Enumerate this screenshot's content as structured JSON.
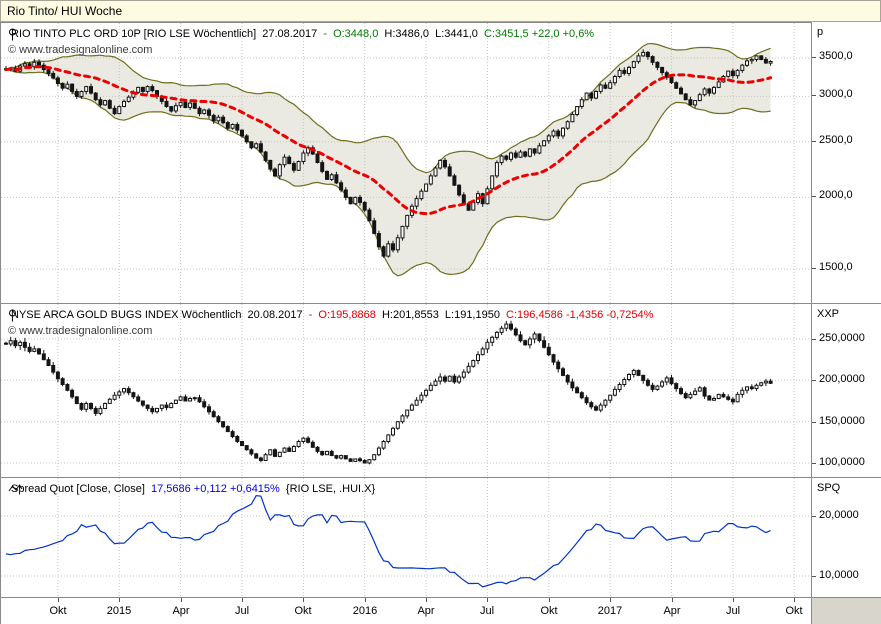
{
  "window": {
    "title": "Rio Tinto/ HUI Woche"
  },
  "panel_rio": {
    "instrument": "RIO TINTO PLC ORD 10P [RIO LSE  Wöchentlich]",
    "date": "27.08.2017",
    "dash": "-",
    "o": "O:3448,0",
    "h": "H:3486,0",
    "l": "L:3441,0",
    "c": "C:3451,5 +22,0 +0,6%",
    "copyright": "© www.tradesignalonline.com",
    "unit": "p",
    "y_labels": [
      "3500,0",
      "3000,0",
      "2500,0",
      "2000,0",
      "1500,0"
    ]
  },
  "panel_hui": {
    "instrument": "NYSE ARCA GOLD BUGS INDEX Wöchentlich",
    "date": "20.08.2017",
    "dash": "-",
    "o": "O:195,8868",
    "h": "H:201,8553",
    "l": "L:191,1950",
    "c": "C:196,4586 -1,4356 -0,7254%",
    "copyright": "© www.tradesignalonline.com",
    "unit": "XXP",
    "y_labels": [
      "250,0000",
      "200,0000",
      "150,0000",
      "100,0000"
    ]
  },
  "panel_spread": {
    "title": "Spread Quot [Close, Close]",
    "value": "17,5686 +0,112 +0,6415%",
    "formula": "{RIO LSE, .HUI.X}",
    "unit": "SPQ",
    "y_labels": [
      "20,0000",
      "10,0000"
    ]
  },
  "xaxis": {
    "labels": [
      "Okt",
      "2015",
      "Apr",
      "Jul",
      "Okt",
      "2016",
      "Apr",
      "Jul",
      "Okt",
      "2017",
      "Apr",
      "Jul",
      "Okt"
    ]
  },
  "colors": {
    "candle": "#151515",
    "ma_dashed": "#ee0000",
    "band_line": "#6e6e1e",
    "band_fill": "rgba(195,195,175,0.35)",
    "spread_line": "#0033cc",
    "gain_text": "#007a00",
    "loss_text": "#e00000",
    "value_text": "#0000d8",
    "titlebar_bg": "#fdfbe1"
  },
  "chart_data": [
    {
      "type": "candlestick",
      "name": "RIO TINTO PLC ORD 10P [RIO LSE] weekly",
      "scale": "log",
      "ylim": [
        1450,
        3700
      ],
      "y_ticks": [
        3500,
        3000,
        2500,
        2000,
        1500
      ],
      "overlays": [
        "bollinger-envelope-olive-grey-fill",
        "red-dashed-moving-average"
      ],
      "last_bar": {
        "open": 3448.0,
        "high": 3486.0,
        "low": 3441.0,
        "close": 3451.5,
        "change": 22.0,
        "change_pct": 0.6
      },
      "closes": [
        3340,
        3360,
        3320,
        3390,
        3420,
        3380,
        3440,
        3400,
        3340,
        3290,
        3230,
        3160,
        3100,
        3150,
        3060,
        3000,
        3060,
        3120,
        3040,
        2960,
        2900,
        2950,
        2860,
        2800,
        2880,
        2940,
        2990,
        3050,
        3110,
        3060,
        3120,
        3070,
        3000,
        2940,
        2880,
        2830,
        2890,
        2930,
        2870,
        2920,
        2860,
        2800,
        2840,
        2780,
        2720,
        2760,
        2700,
        2640,
        2680,
        2620,
        2560,
        2500,
        2440,
        2480,
        2400,
        2320,
        2240,
        2180,
        2280,
        2350,
        2290,
        2230,
        2310,
        2390,
        2440,
        2380,
        2300,
        2220,
        2150,
        2190,
        2120,
        2060,
        2000,
        1950,
        2000,
        1960,
        1900,
        1820,
        1730,
        1640,
        1580,
        1660,
        1620,
        1700,
        1780,
        1860,
        1930,
        1990,
        2050,
        2110,
        2180,
        2250,
        2320,
        2260,
        2180,
        2100,
        2020,
        1950,
        1900,
        1960,
        2030,
        1950,
        2070,
        2180,
        2300,
        2360,
        2330,
        2390,
        2350,
        2400,
        2360,
        2430,
        2390,
        2460,
        2510,
        2560,
        2610,
        2560,
        2640,
        2710,
        2790,
        2880,
        2960,
        3040,
        2980,
        3060,
        3140,
        3100,
        3170,
        3250,
        3330,
        3290,
        3370,
        3450,
        3530,
        3580,
        3520,
        3440,
        3370,
        3300,
        3240,
        3170,
        3100,
        3030,
        2960,
        2900,
        2950,
        3020,
        3090,
        3040,
        3110,
        3180,
        3250,
        3320,
        3260,
        3330,
        3400,
        3460,
        3480,
        3530,
        3480,
        3430,
        3451.5
      ]
    },
    {
      "type": "candlestick",
      "name": "NYSE ARCA GOLD BUGS INDEX (.HUI.X) weekly",
      "scale": "linear",
      "ylim": [
        90,
        290
      ],
      "y_ticks": [
        250,
        200,
        150,
        100
      ],
      "last_bar": {
        "open": 195.8868,
        "high": 201.8553,
        "low": 191.195,
        "close": 196.4586,
        "change": -1.4356,
        "change_pct": -0.7254
      },
      "closes": [
        244,
        248,
        242,
        246,
        240,
        235,
        238,
        232,
        225,
        218,
        210,
        202,
        195,
        188,
        180,
        172,
        165,
        172,
        166,
        160,
        166,
        172,
        177,
        182,
        186,
        190,
        185,
        180,
        175,
        170,
        166,
        162,
        166,
        170,
        167,
        172,
        176,
        180,
        175,
        178,
        179,
        174,
        168,
        162,
        156,
        150,
        144,
        138,
        132,
        126,
        121,
        116,
        111,
        106,
        103,
        110,
        116,
        108,
        113,
        118,
        114,
        120,
        126,
        130,
        125,
        119,
        114,
        110,
        114,
        109,
        106,
        109,
        105,
        102,
        105,
        103,
        100,
        104,
        110,
        118,
        126,
        134,
        142,
        150,
        157,
        164,
        170,
        176,
        182,
        188,
        194,
        199,
        204,
        199,
        205,
        198,
        204,
        210,
        217,
        224,
        231,
        238,
        246,
        252,
        258,
        263,
        268,
        262,
        255,
        248,
        243,
        250,
        256,
        248,
        240,
        231,
        222,
        214,
        206,
        198,
        191,
        185,
        179,
        173,
        168,
        164,
        170,
        176,
        182,
        189,
        195,
        201,
        207,
        212,
        206,
        200,
        194,
        189,
        193,
        198,
        203,
        196,
        190,
        184,
        179,
        183,
        187,
        191,
        181,
        176,
        178,
        183,
        180,
        177,
        174,
        183,
        188,
        192,
        190,
        194,
        197,
        199,
        196.4586
      ]
    },
    {
      "type": "line",
      "name": "Spread Quot [Close, Close] {RIO LSE, .HUI.X}",
      "scale": "linear",
      "ylim": [
        8,
        23
      ],
      "y_ticks": [
        20,
        10
      ],
      "formula": "RIO LSE weekly close / .HUI.X weekly close",
      "last_value": 17.5686,
      "change": 0.112,
      "change_pct": 0.6415
    }
  ]
}
